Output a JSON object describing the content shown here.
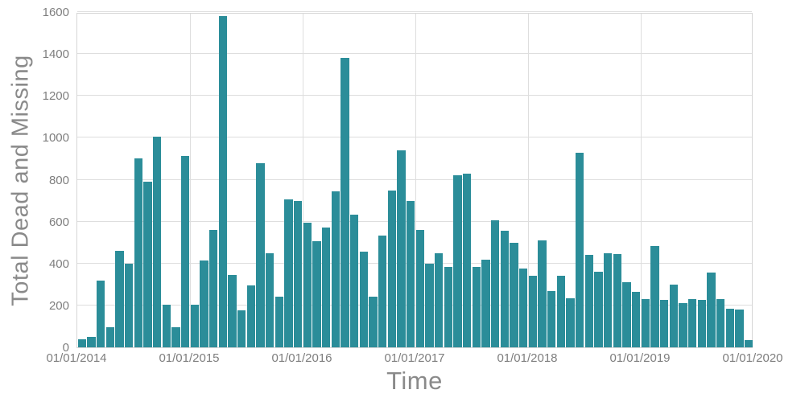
{
  "chart_data": {
    "type": "bar",
    "title": "",
    "xlabel": "Time",
    "ylabel": "Total Dead and Missing",
    "x_tick_labels": [
      "01/01/2014",
      "01/01/2015",
      "01/01/2016",
      "01/01/2017",
      "01/01/2018",
      "01/01/2019",
      "01/01/2020"
    ],
    "x_frequency": "monthly",
    "yticks": [
      0,
      200,
      400,
      600,
      800,
      1000,
      1200,
      1400,
      1600
    ],
    "ylim": [
      0,
      1600
    ],
    "grid": true,
    "legend": false,
    "bar_color": "#2b8d99",
    "grid_color": "#dedede",
    "axis_label_color": "#8a8a8a",
    "tick_label_color": "#7e7e7e",
    "values": [
      40,
      50,
      320,
      95,
      460,
      400,
      900,
      790,
      1005,
      205,
      95,
      915,
      205,
      415,
      560,
      1580,
      345,
      175,
      295,
      880,
      450,
      240,
      705,
      700,
      595,
      505,
      570,
      745,
      1380,
      635,
      455,
      240,
      535,
      750,
      940,
      700,
      560,
      400,
      450,
      385,
      820,
      830,
      385,
      420,
      605,
      555,
      500,
      375,
      340,
      510,
      270,
      340,
      235,
      930,
      440,
      360,
      450,
      445,
      310,
      265,
      230,
      485,
      225,
      300,
      210,
      230,
      225,
      355,
      230,
      185,
      180,
      35
    ]
  }
}
